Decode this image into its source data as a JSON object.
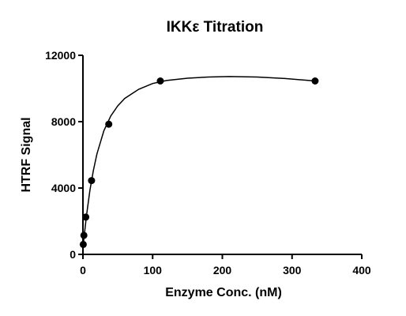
{
  "chart_data": {
    "type": "scatter",
    "title": "IKKε Titration",
    "xlabel": "Enzyme Conc. (nM)",
    "ylabel": "HTRF Signal",
    "xlim": [
      0,
      400
    ],
    "ylim": [
      0,
      12000
    ],
    "xticks": [
      0,
      100,
      200,
      300,
      400
    ],
    "yticks": [
      0,
      4000,
      8000,
      12000
    ],
    "series": [
      {
        "x": [
          0.5,
          1.4,
          4.1,
          12.3,
          37,
          111,
          333
        ],
        "y": [
          600,
          1150,
          2250,
          4450,
          7850,
          10450,
          10450
        ]
      }
    ],
    "fit_curve": {
      "x": [
        0,
        2,
        5,
        10,
        15,
        20,
        30,
        40,
        50,
        60,
        80,
        100,
        120,
        150,
        180,
        210,
        250,
        290,
        333
      ],
      "y": [
        400,
        1200,
        2300,
        3850,
        5050,
        6050,
        7450,
        8350,
        8950,
        9400,
        9950,
        10300,
        10480,
        10620,
        10690,
        10720,
        10690,
        10600,
        10450
      ]
    },
    "grid": false,
    "legend": "none"
  }
}
